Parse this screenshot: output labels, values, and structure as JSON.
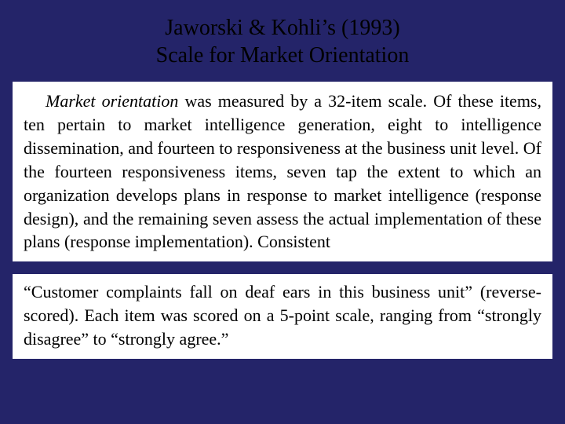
{
  "title": {
    "line1": "Jaworski & Kohli’s (1993)",
    "line2": "Scale for Market Orientation"
  },
  "paragraph1": {
    "lead_italic": "Market orientation",
    "rest": " was measured by a 32-item scale. Of these items, ten pertain to market intelligence generation, eight to intelligence dissemination, and fourteen to responsiveness at the business unit level. Of the fourteen responsiveness items, seven tap the extent to which an organization develops plans in response to market intelligence (response design), and the remaining seven assess the actual implementation of these plans (response implementation). Consistent"
  },
  "paragraph2": {
    "text": "“Customer complaints fall on deaf ears in this business unit” (reverse-scored). Each item was scored on a 5-point scale, ranging from “strongly disagree” to “strongly agree.”"
  },
  "colors": {
    "background": "#242469",
    "excerpt_bg": "#ffffff",
    "text": "#000000"
  }
}
